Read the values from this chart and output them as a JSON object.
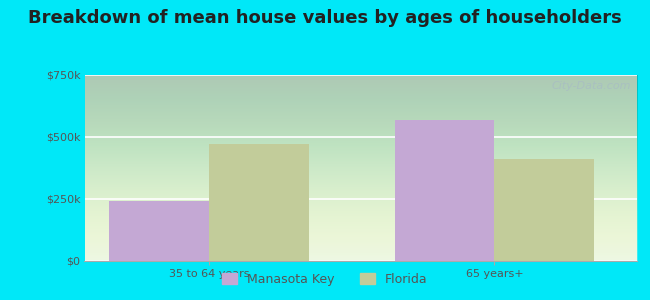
{
  "title": "Breakdown of mean house values by ages of householders",
  "categories": [
    "35 to 64 years",
    "65 years+"
  ],
  "series": {
    "Manasota Key": [
      240000,
      570000
    ],
    "Florida": [
      470000,
      410000
    ]
  },
  "bar_colors": {
    "Manasota Key": "#c4a8d4",
    "Florida": "#c2cc9a"
  },
  "ylim": [
    0,
    750000
  ],
  "yticks": [
    0,
    250000,
    500000,
    750000
  ],
  "ytick_labels": [
    "$0",
    "$250k",
    "$500k",
    "$750k"
  ],
  "background_outer": "#00e8f8",
  "title_fontsize": 13,
  "legend_fontsize": 9,
  "tick_fontsize": 8,
  "bar_width": 0.28,
  "watermark": "City-Data.com"
}
